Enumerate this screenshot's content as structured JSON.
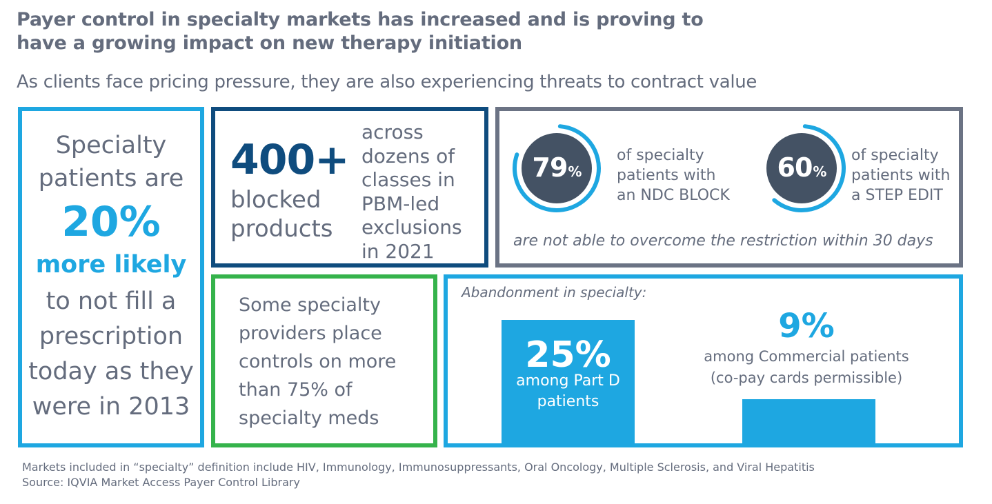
{
  "header": {
    "title_line1": "Payer control in specialty markets has increased and is proving to",
    "title_line2": "have a growing impact on new therapy initiation",
    "subtitle": "As clients face pricing pressure, they are also experiencing threats to contract value"
  },
  "left_panel": {
    "line1": "Specialty",
    "line2": "patients are",
    "highlight_value": "20%",
    "highlight_label": "more likely",
    "line3": "to not fill a",
    "line4": "prescription",
    "line5": "today as they",
    "line6": "were in 2013"
  },
  "blocked_panel": {
    "value": "400+",
    "label_line1": "blocked",
    "label_line2": "products",
    "desc_lines": [
      "across",
      "dozens of",
      "classes in",
      "PBM-led",
      "exclusions",
      "in 2021"
    ]
  },
  "rings_panel": {
    "rings": [
      {
        "value": 79,
        "value_text": "79",
        "unit": "%",
        "label_lines": [
          "of specialty",
          "patients with",
          "an NDC BLOCK"
        ]
      },
      {
        "value": 60,
        "value_text": "60",
        "unit": "%",
        "label_lines": [
          "of specialty",
          "patients with",
          "a STEP EDIT"
        ]
      }
    ],
    "footnote": "are not able to overcome the restriction within 30 days"
  },
  "providers_panel": {
    "lines": [
      "Some specialty",
      "providers place",
      "controls on more",
      "than 75% of",
      "specialty meds"
    ]
  },
  "abandonment_panel": {
    "label": "Abandonment in specialty:",
    "bars": [
      {
        "value": 25,
        "value_text": "25%",
        "label_lines": [
          "among Part D",
          "patients"
        ]
      },
      {
        "value": 9,
        "value_text": "9%",
        "label_lines": [
          "among Commercial patients",
          "(co-pay cards permissible)"
        ]
      }
    ]
  },
  "footer": {
    "note": "Markets included in “specialty” definition include HIV, Immunology, Immunosuppressants, Oral Oncology, Multiple Sclerosis, and Viral Hepatitis",
    "source": "Source: IQVIA Market Access Payer Control Library"
  },
  "colors": {
    "accent_blue": "#1ea7e1",
    "navy": "#0f4c7e",
    "slate": "#6b7384",
    "green": "#35b34b",
    "ring_fill": "#445264",
    "text_gray": "#646c7d"
  }
}
